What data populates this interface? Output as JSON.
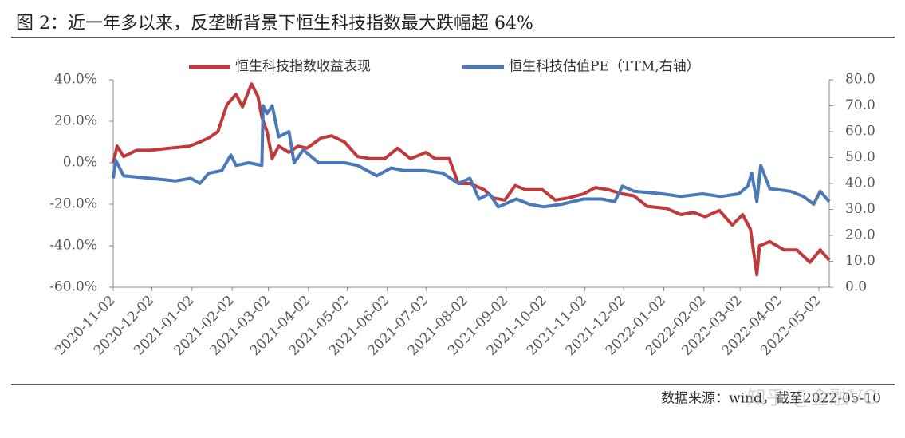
{
  "chart_data": {
    "type": "line",
    "title": "图 2：近一年多以来，反垄断背景下恒生科技指数最大跌幅超 64%",
    "source": "数据来源：wind，截至2022-05-10",
    "watermark": "知乎 @金融VC",
    "legend": "top",
    "xlim": [
      "2020-11-02",
      "2022-05-10"
    ],
    "xticks": [
      "2020-11-02",
      "2020-12-02",
      "2021-01-02",
      "2021-02-02",
      "2021-03-02",
      "2021-04-02",
      "2021-05-02",
      "2021-06-02",
      "2021-07-02",
      "2021-08-02",
      "2021-09-02",
      "2021-10-02",
      "2021-11-02",
      "2021-12-02",
      "2022-01-02",
      "2022-02-02",
      "2022-03-02",
      "2022-04-02",
      "2022-05-02"
    ],
    "ylim": [
      -60,
      40
    ],
    "yticks": [
      {
        "value": -60,
        "label": "-60.0%"
      },
      {
        "value": -40,
        "label": "-40.0%"
      },
      {
        "value": -20,
        "label": "-20.0%"
      },
      {
        "value": 0,
        "label": "0.0%"
      },
      {
        "value": 20,
        "label": "20.0%"
      },
      {
        "value": 40,
        "label": "40.0%"
      }
    ],
    "y2lim": [
      0,
      80
    ],
    "y2ticks": [
      {
        "value": 0,
        "label": "0.0"
      },
      {
        "value": 10,
        "label": "10.0"
      },
      {
        "value": 20,
        "label": "20.0"
      },
      {
        "value": 30,
        "label": "30.0"
      },
      {
        "value": 40,
        "label": "40.0"
      },
      {
        "value": 50,
        "label": "50.0"
      },
      {
        "value": 60,
        "label": "60.0"
      },
      {
        "value": 70,
        "label": "70.0"
      },
      {
        "value": 80,
        "label": "80.0"
      }
    ],
    "series": [
      {
        "name": "恒生科技指数收益表现",
        "color": "#c0393b",
        "x": [
          "2020-11-02",
          "2020-11-05",
          "2020-11-10",
          "2020-11-20",
          "2020-12-01",
          "2020-12-15",
          "2020-12-31",
          "2021-01-08",
          "2021-01-15",
          "2021-01-22",
          "2021-01-29",
          "2021-02-05",
          "2021-02-10",
          "2021-02-17",
          "2021-02-22",
          "2021-02-25",
          "2021-03-01",
          "2021-03-05",
          "2021-03-10",
          "2021-03-18",
          "2021-03-25",
          "2021-04-01",
          "2021-04-12",
          "2021-04-20",
          "2021-04-30",
          "2021-05-10",
          "2021-05-20",
          "2021-05-31",
          "2021-06-10",
          "2021-06-20",
          "2021-07-02",
          "2021-07-09",
          "2021-07-20",
          "2021-07-27",
          "2021-08-05",
          "2021-08-16",
          "2021-08-23",
          "2021-09-01",
          "2021-09-09",
          "2021-09-17",
          "2021-09-30",
          "2021-10-10",
          "2021-10-20",
          "2021-11-01",
          "2021-11-10",
          "2021-11-20",
          "2021-12-01",
          "2021-12-10",
          "2021-12-20",
          "2022-01-04",
          "2022-01-15",
          "2022-01-25",
          "2022-02-03",
          "2022-02-14",
          "2022-02-24",
          "2022-03-04",
          "2022-03-10",
          "2022-03-15",
          "2022-03-17",
          "2022-03-25",
          "2022-04-05",
          "2022-04-15",
          "2022-04-25",
          "2022-05-03",
          "2022-05-10"
        ],
        "values": [
          0,
          8,
          3,
          6,
          6,
          7,
          8,
          10,
          12,
          15,
          28,
          33,
          27,
          38,
          32,
          22,
          15,
          2,
          8,
          5,
          8,
          7,
          12,
          13,
          10,
          3,
          2,
          2,
          7,
          2,
          5,
          2,
          2,
          -10,
          -10,
          -13,
          -17,
          -18,
          -11,
          -13,
          -13,
          -18,
          -17,
          -15,
          -12,
          -13,
          -15,
          -16,
          -21,
          -22,
          -25,
          -24,
          -26,
          -23,
          -30,
          -25,
          -32,
          -54,
          -40,
          -38,
          -42,
          -42,
          -48,
          -42,
          -47
        ]
      },
      {
        "name": "恒生科技估值PE（TTM,右轴）",
        "color": "#4a78b8",
        "axis": "y2",
        "x": [
          "2020-11-02",
          "2020-11-04",
          "2020-11-10",
          "2020-12-01",
          "2020-12-20",
          "2021-01-01",
          "2021-01-08",
          "2021-01-15",
          "2021-01-25",
          "2021-02-01",
          "2021-02-05",
          "2021-02-15",
          "2021-02-25",
          "2021-02-26",
          "2021-03-01",
          "2021-03-05",
          "2021-03-10",
          "2021-03-18",
          "2021-03-22",
          "2021-03-29",
          "2021-04-10",
          "2021-04-30",
          "2021-05-10",
          "2021-05-25",
          "2021-06-05",
          "2021-06-15",
          "2021-07-01",
          "2021-07-15",
          "2021-07-27",
          "2021-08-05",
          "2021-08-12",
          "2021-08-20",
          "2021-08-27",
          "2021-09-10",
          "2021-09-20",
          "2021-10-01",
          "2021-10-15",
          "2021-11-01",
          "2021-11-15",
          "2021-11-25",
          "2021-12-01",
          "2021-12-10",
          "2022-01-01",
          "2022-01-15",
          "2022-02-01",
          "2022-02-15",
          "2022-03-01",
          "2022-03-08",
          "2022-03-11",
          "2022-03-15",
          "2022-03-18",
          "2022-03-25",
          "2022-04-10",
          "2022-04-20",
          "2022-04-28",
          "2022-05-03",
          "2022-05-10"
        ],
        "values": [
          42,
          49,
          43,
          42,
          41,
          42,
          40,
          44,
          45,
          51,
          47,
          48,
          47,
          70,
          67,
          70,
          58,
          60,
          48,
          53,
          48,
          48,
          47,
          43,
          46,
          45,
          45,
          44,
          40,
          42,
          34,
          36,
          31,
          34,
          32,
          31,
          32,
          34,
          34,
          33,
          39,
          37,
          36,
          35,
          36,
          35,
          36,
          39,
          44,
          33,
          47,
          38,
          37,
          35,
          32,
          37,
          33
        ]
      }
    ]
  }
}
